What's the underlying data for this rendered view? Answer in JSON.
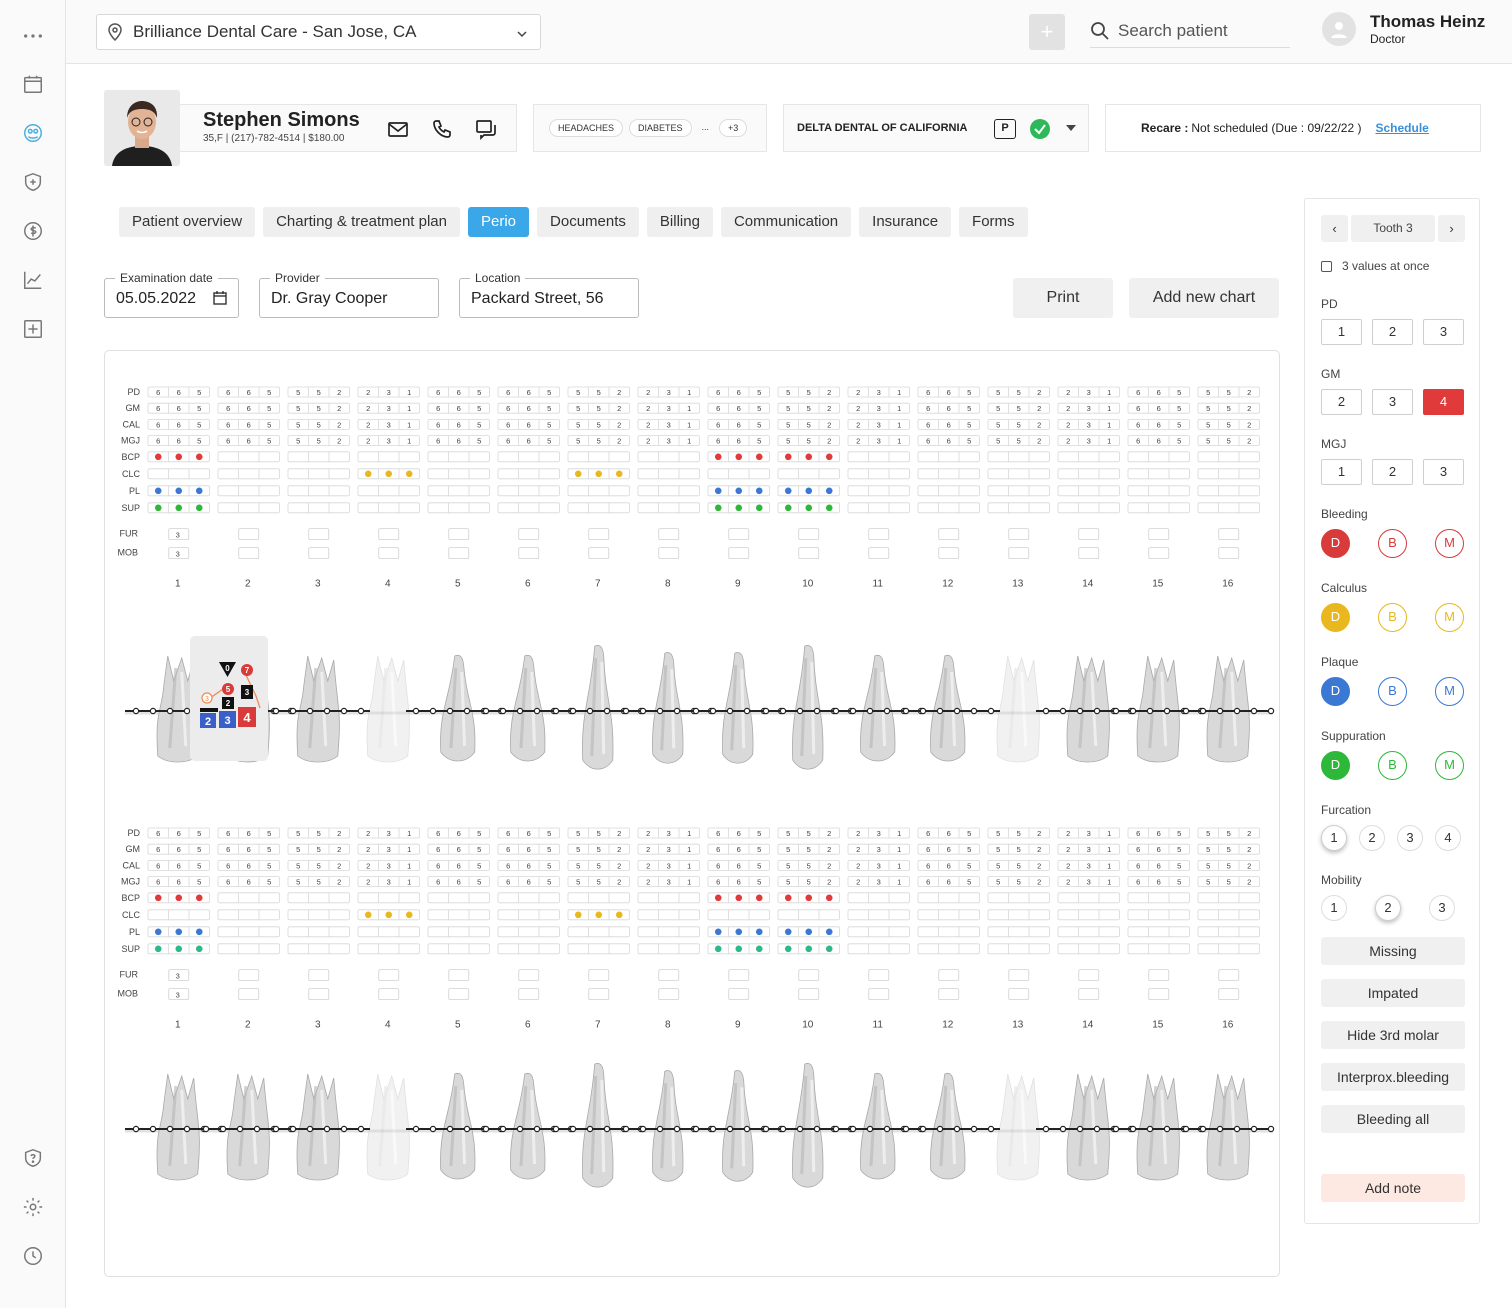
{
  "topbar": {
    "location": "Brilliance Dental Care - San Jose, CA",
    "search_placeholder": "Search patient",
    "user_name": "Thomas Heinz",
    "user_role": "Doctor"
  },
  "sidebar": {
    "items": [
      "more-icon",
      "calendar-icon",
      "patients-icon",
      "shield-plus-icon",
      "dollar-icon",
      "chart-icon",
      "medical-plus-icon"
    ],
    "bottom": [
      "help-shield-icon",
      "gear-icon",
      "clock-icon"
    ],
    "active_color": "#4aaee0"
  },
  "patient": {
    "name": "Stephen Simons",
    "info": "35,F | (217)-782-4514 | $180.00",
    "tags": [
      "HEADACHES",
      "DIABETES",
      "...",
      "+3"
    ],
    "insurance": "DELTA DENTAL OF CALIFORNIA",
    "insurance_badge": "P",
    "recare_label": "Recare :",
    "recare_value": "Not scheduled (Due : 09/22/22 )",
    "recare_link": "Schedule"
  },
  "tabs": [
    {
      "label": "Patient overview",
      "active": false
    },
    {
      "label": "Charting & treatment plan",
      "active": false
    },
    {
      "label": "Perio",
      "active": true
    },
    {
      "label": "Documents",
      "active": false
    },
    {
      "label": "Billing",
      "active": false
    },
    {
      "label": "Communication",
      "active": false
    },
    {
      "label": "Insurance",
      "active": false
    },
    {
      "label": "Forms",
      "active": false
    }
  ],
  "exam": {
    "date_label": "Examination date",
    "date_value": "05.05.2022",
    "provider_label": "Provider",
    "provider_value": "Dr. Gray Cooper",
    "location_label": "Location",
    "location_value": "Packard Street, 56",
    "print_label": "Print",
    "add_chart_label": "Add new chart"
  },
  "perio": {
    "row_labels": [
      "PD",
      "GM",
      "CAL",
      "MGJ",
      "BCP",
      "CLC",
      "PL",
      "SUP"
    ],
    "fur_label": "FUR",
    "mob_label": "MOB",
    "tooth_numbers": [
      "1",
      "2",
      "3",
      "4",
      "5",
      "6",
      "7",
      "8",
      "9",
      "10",
      "11",
      "12",
      "13",
      "14",
      "15",
      "16"
    ],
    "value_patterns": [
      [
        "6",
        "6",
        "5"
      ],
      [
        "6",
        "6",
        "5"
      ],
      [
        "5",
        "5",
        "2"
      ],
      [
        "2",
        "3",
        "1"
      ],
      [
        "6",
        "6",
        "5"
      ],
      [
        "6",
        "6",
        "5"
      ],
      [
        "5",
        "5",
        "2"
      ],
      [
        "2",
        "3",
        "1"
      ],
      [
        "6",
        "6",
        "5"
      ],
      [
        "5",
        "5",
        "2"
      ],
      [
        "2",
        "3",
        "1"
      ],
      [
        "6",
        "6",
        "5"
      ],
      [
        "5",
        "5",
        "2"
      ],
      [
        "2",
        "3",
        "1"
      ],
      [
        "6",
        "6",
        "5"
      ],
      [
        "5",
        "5",
        "2"
      ]
    ],
    "fur_value_tooth1": "3",
    "mob_value_tooth1": "3",
    "upper_dots": {
      "BCP": {
        "teeth": [
          1,
          9,
          10
        ],
        "color": "#e03a3a"
      },
      "CLC": {
        "teeth": [
          4,
          7
        ],
        "color": "#e8b81e"
      },
      "PL": {
        "teeth": [
          1,
          9,
          10
        ],
        "color": "#3a78d4"
      },
      "SUP": {
        "teeth": [
          1,
          9,
          10
        ],
        "color": "#2db83a"
      }
    },
    "lower_dots": {
      "BCP": {
        "teeth": [
          1,
          9,
          10
        ],
        "color": "#e03a3a"
      },
      "CLC": {
        "teeth": [
          4,
          7
        ],
        "color": "#e8b81e"
      },
      "PL": {
        "teeth": [
          1,
          9,
          10
        ],
        "color": "#3a78d4"
      },
      "SUP": {
        "teeth": [
          1,
          9,
          10
        ],
        "color": "#2fb88a"
      }
    },
    "faded_teeth": [
      4,
      13
    ],
    "gap_teeth": [
      4,
      13
    ],
    "selected_tooth": 2,
    "markers": {
      "black_triangle": "0",
      "red_top": "7",
      "red_mid": "5",
      "black_a": "3",
      "black_b": "2",
      "blue_a": "2",
      "blue_b": "3",
      "red_big": "4",
      "orange_circle": "3"
    }
  },
  "panel": {
    "tooth_label": "Tooth 3",
    "three_values": "3 values at once",
    "pd_label": "PD",
    "pd_values": [
      "1",
      "2",
      "3"
    ],
    "gm_label": "GM",
    "gm_values": [
      "2",
      "3",
      "4"
    ],
    "gm_selected": "4",
    "mgj_label": "MGJ",
    "mgj_values": [
      "1",
      "2",
      "3"
    ],
    "bleeding_label": "Bleeding",
    "calculus_label": "Calculus",
    "plaque_label": "Plaque",
    "suppuration_label": "Suppuration",
    "dbm": [
      "D",
      "B",
      "M"
    ],
    "bleeding_color": "#d93a3a",
    "calculus_color": "#e8b81e",
    "plaque_color": "#3a78d4",
    "suppuration_color": "#2db83a",
    "furcation_label": "Furcation",
    "furcation_values": [
      "1",
      "2",
      "3",
      "4"
    ],
    "mobility_label": "Mobility",
    "mobility_values": [
      "1",
      "2",
      "3"
    ],
    "buttons": [
      "Missing",
      "Impated",
      "Hide 3rd molar",
      "Interprox.bleeding",
      "Bleeding all"
    ],
    "add_note": "Add note"
  }
}
